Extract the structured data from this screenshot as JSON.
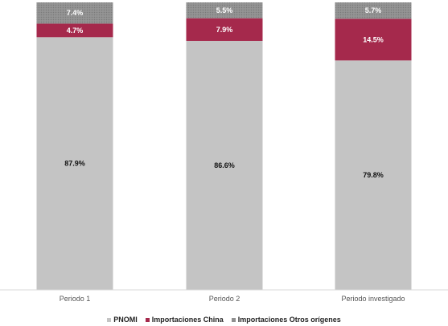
{
  "chart_data": {
    "type": "bar",
    "stacked": true,
    "categories": [
      "Periodo 1",
      "Periodo 2",
      "Periodo investigado"
    ],
    "series": [
      {
        "name": "PNOMI",
        "values": [
          87.9,
          86.6,
          79.8
        ],
        "labels": [
          "87.9%",
          "86.6%",
          "79.8%"
        ],
        "color": "#c4c4c4",
        "label_color": "#111111"
      },
      {
        "name": "Importaciones China",
        "values": [
          4.7,
          7.9,
          14.5
        ],
        "labels": [
          "4.7%",
          "7.9%",
          "14.5%"
        ],
        "color": "#a5294c",
        "label_color": "#ffffff"
      },
      {
        "name": "Importaciones Otros orígenes",
        "values": [
          7.4,
          5.5,
          5.7
        ],
        "labels": [
          "7.4%",
          "5.5%",
          "5.7%"
        ],
        "color": "#8f8f8f",
        "label_color": "#ffffff"
      }
    ],
    "ylim": [
      0,
      100
    ],
    "grid": false,
    "legend_position": "bottom"
  }
}
